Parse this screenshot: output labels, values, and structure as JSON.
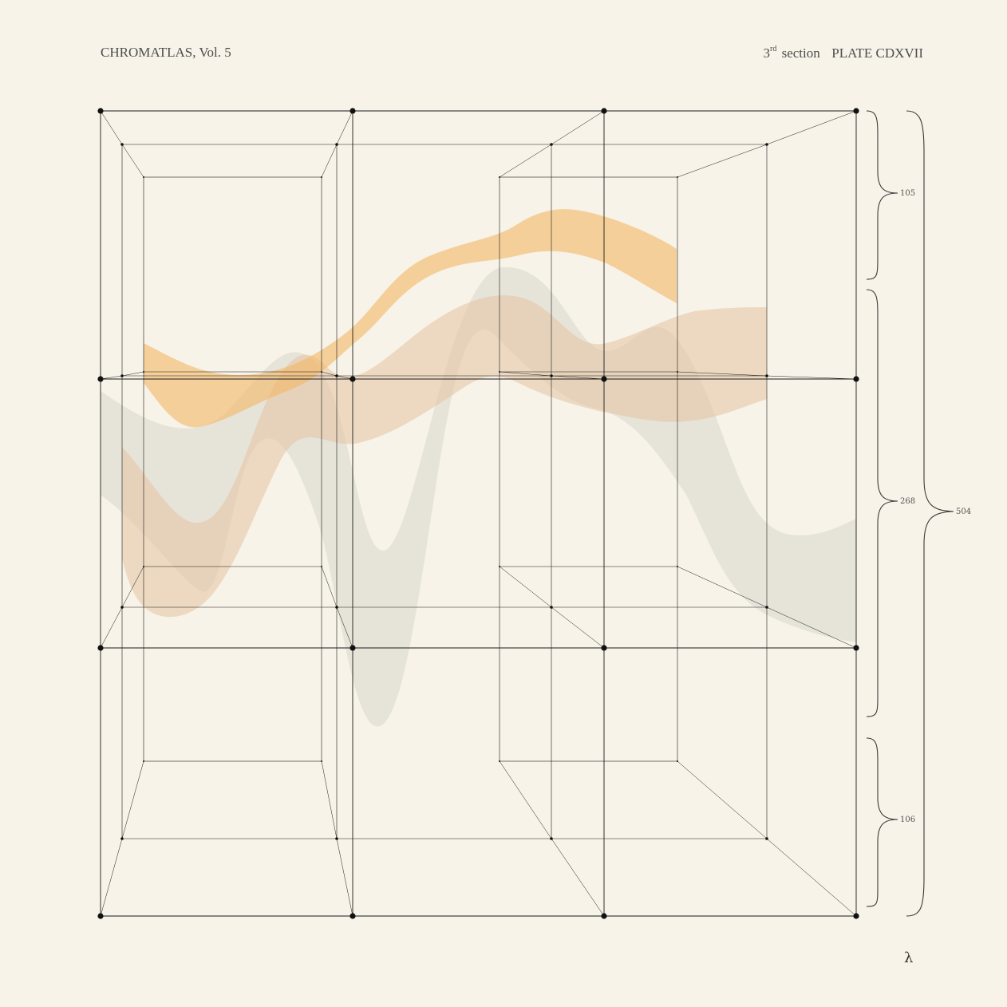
{
  "header": {
    "title": "CHROMATLAS, Vol. 5",
    "section_number": "3",
    "section_suffix": "rd",
    "section_word": "section",
    "plate": "PLATE CDXVII"
  },
  "brackets": {
    "small_top": "105",
    "middle": "268",
    "small_bottom": "106",
    "total": "504"
  },
  "footer_symbol": "λ",
  "colors": {
    "paper": "#f7f3e8",
    "orange_band": "#f5c27a",
    "peach_band": "#e9c9a8",
    "grey_band": "#dcdad0",
    "lines": "#1a1a1a"
  }
}
